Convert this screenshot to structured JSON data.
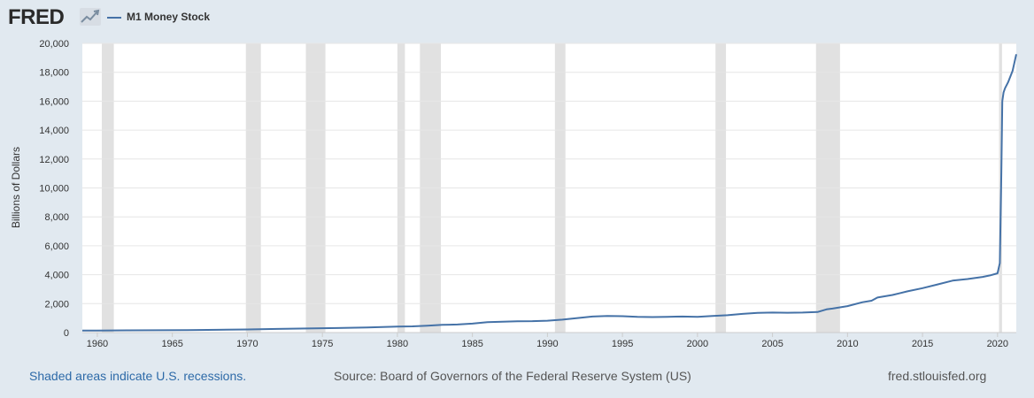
{
  "header": {
    "logo_text": "FRED",
    "legend_label": "M1 Money Stock"
  },
  "footer": {
    "note": "Shaded areas indicate U.S. recessions.",
    "source": "Source: Board of Governors of the Federal Reserve System (US)",
    "site": "fred.stlouisfed.org"
  },
  "colors": {
    "series": "#4572a7",
    "recession": "#e1e1e1",
    "background": "#e1e9f0",
    "plot": "#ffffff",
    "link": "#2d6aa8"
  },
  "chart_data": {
    "type": "line",
    "title": "",
    "xlabel": "",
    "ylabel": "Billions of Dollars",
    "xlim": [
      1959.0,
      2021.25
    ],
    "ylim": [
      0,
      20000
    ],
    "x_ticks": [
      1960,
      1965,
      1970,
      1975,
      1980,
      1985,
      1990,
      1995,
      2000,
      2005,
      2010,
      2015,
      2020
    ],
    "y_ticks": [
      0,
      2000,
      4000,
      6000,
      8000,
      10000,
      12000,
      14000,
      16000,
      18000,
      20000
    ],
    "y_tick_labels": [
      "0",
      "2,000",
      "4,000",
      "6,000",
      "8,000",
      "10,000",
      "12,000",
      "14,000",
      "16,000",
      "18,000",
      "20,000"
    ],
    "grid": true,
    "legend": "top-left",
    "recessions": [
      [
        1960.3,
        1961.1
      ],
      [
        1969.9,
        1970.9
      ],
      [
        1973.9,
        1975.2
      ],
      [
        1980.0,
        1980.5
      ],
      [
        1981.5,
        1982.9
      ],
      [
        1990.5,
        1991.2
      ],
      [
        2001.2,
        2001.9
      ],
      [
        2007.9,
        2009.5
      ],
      [
        2020.1,
        2020.3
      ]
    ],
    "series": [
      {
        "name": "M1 Money Stock",
        "x": [
          1959.0,
          1960,
          1962,
          1964,
          1966,
          1968,
          1970,
          1972,
          1974,
          1976,
          1978,
          1980,
          1981,
          1982,
          1983,
          1984,
          1985,
          1986,
          1987,
          1988,
          1989,
          1990,
          1991,
          1992,
          1993,
          1994,
          1995,
          1996,
          1997,
          1998,
          1999,
          2000,
          2001,
          2002,
          2003,
          2004,
          2005,
          2006,
          2007,
          2008,
          2008.6,
          2009,
          2010,
          2011,
          2011.6,
          2012,
          2013,
          2014,
          2015,
          2016,
          2017,
          2018,
          2019,
          2019.5,
          2020.0,
          2020.15,
          2020.25,
          2020.32,
          2020.4,
          2020.5,
          2020.7,
          2021.0,
          2021.25
        ],
        "y": [
          140,
          140,
          150,
          160,
          170,
          190,
          215,
          250,
          280,
          310,
          355,
          410,
          430,
          480,
          530,
          555,
          620,
          720,
          750,
          785,
          790,
          820,
          890,
          1000,
          1110,
          1150,
          1130,
          1080,
          1070,
          1090,
          1110,
          1090,
          1150,
          1200,
          1290,
          1360,
          1380,
          1370,
          1380,
          1420,
          1600,
          1660,
          1830,
          2100,
          2200,
          2420,
          2600,
          2850,
          3070,
          3330,
          3590,
          3700,
          3850,
          3950,
          4100,
          4800,
          11000,
          16000,
          16600,
          16900,
          17300,
          18100,
          19250
        ]
      }
    ]
  }
}
